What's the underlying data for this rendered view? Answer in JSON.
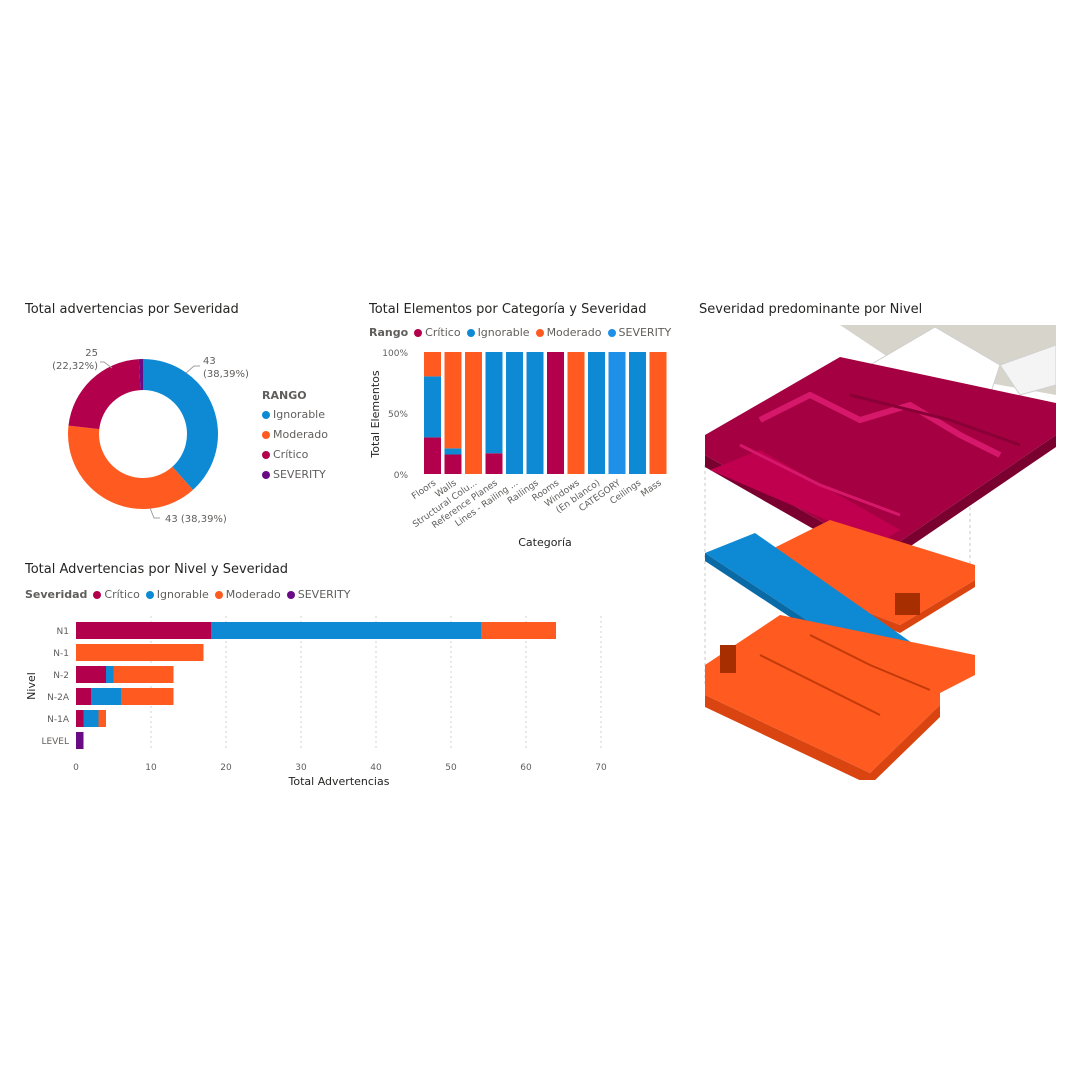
{
  "colors": {
    "Critico": "#b3004c",
    "Ignorable": "#0e8ad4",
    "Moderado": "#ff5a1f",
    "SEVERITY": "#6a0a84",
    "SEVERITY_bar": "#1e90e8"
  },
  "donut": {
    "title": "Total advertencias por Severidad",
    "legend_title": "RANGO",
    "legend": [
      "Ignorable",
      "Moderado",
      "Crítico",
      "SEVERITY"
    ],
    "labels": {
      "ignorable_value": "43",
      "ignorable_pct": "(38,39%)",
      "moderado": "43 (38,39%)",
      "critico_value": "25",
      "critico_pct": "(22,32%)"
    }
  },
  "category_chart": {
    "title": "Total Elementos por Categoría y Severidad",
    "legend_title": "Rango",
    "legend": [
      "Crítico",
      "Ignorable",
      "Moderado",
      "SEVERITY"
    ],
    "ylabel": "Total Elementos",
    "xlabel": "Categoría",
    "yticks": [
      "100%",
      "50%",
      "0%"
    ]
  },
  "level_chart": {
    "title": "Total Advertencias por Nivel y Severidad",
    "legend_title": "Severidad",
    "legend": [
      "Crítico",
      "Ignorable",
      "Moderado",
      "SEVERITY"
    ],
    "ylabel": "Nivel",
    "xlabel": "Total Advertencias"
  },
  "model_view": {
    "title": "Severidad predominante por Nivel",
    "levels": [
      "Crítico",
      "Ignorable",
      "Moderado",
      "Moderado"
    ]
  },
  "chart_data": [
    {
      "type": "pie",
      "title": "Total advertencias por Severidad",
      "legend_placement": "right",
      "categories": [
        "Ignorable",
        "Moderado",
        "Crítico",
        "SEVERITY"
      ],
      "values": [
        43,
        43,
        25,
        1
      ],
      "percent_labels": [
        "38,39%",
        "38,39%",
        "22,32%",
        ""
      ]
    },
    {
      "type": "bar",
      "stacked": "100%",
      "title": "Total Elementos por Categoría y Severidad",
      "xlabel": "Categoría",
      "ylabel": "Total Elementos",
      "legend_placement": "top",
      "categories": [
        "Floors",
        "Walls",
        "Structural Colu...",
        "Reference Planes",
        "Lines - Railing ...",
        "Railings",
        "Rooms",
        "Windows",
        "(En blanco)",
        "CATEGORY",
        "Ceilings",
        "Mass"
      ],
      "series": [
        {
          "name": "Crítico",
          "values": [
            30,
            16,
            0,
            17,
            0,
            0,
            100,
            0,
            0,
            0,
            0,
            0
          ]
        },
        {
          "name": "Ignorable",
          "values": [
            50,
            5,
            0,
            83,
            100,
            100,
            0,
            0,
            100,
            0,
            100,
            0
          ]
        },
        {
          "name": "Moderado",
          "values": [
            20,
            79,
            100,
            0,
            0,
            0,
            0,
            100,
            0,
            0,
            0,
            100
          ]
        },
        {
          "name": "SEVERITY",
          "values": [
            0,
            0,
            0,
            0,
            0,
            0,
            0,
            0,
            0,
            100,
            0,
            0
          ]
        }
      ],
      "ylim": [
        0,
        100
      ],
      "yticks": [
        "0%",
        "50%",
        "100%"
      ]
    },
    {
      "type": "bar",
      "orientation": "horizontal",
      "stacked": true,
      "title": "Total Advertencias por Nivel y Severidad",
      "xlabel": "Total Advertencias",
      "ylabel": "Nivel",
      "legend_placement": "top",
      "categories": [
        "N1",
        "N-1",
        "N-2",
        "N-2A",
        "N-1A",
        "LEVEL"
      ],
      "series": [
        {
          "name": "Crítico",
          "values": [
            18,
            0,
            4,
            2,
            1,
            0
          ]
        },
        {
          "name": "Ignorable",
          "values": [
            36,
            0,
            1,
            4,
            2,
            0
          ]
        },
        {
          "name": "Moderado",
          "values": [
            10,
            17,
            8,
            7,
            1,
            0
          ]
        },
        {
          "name": "SEVERITY",
          "values": [
            0,
            0,
            0,
            0,
            0,
            1
          ]
        }
      ],
      "xlim": [
        0,
        70
      ],
      "xticks": [
        0,
        10,
        20,
        30,
        40,
        50,
        60,
        70
      ],
      "grid": true
    }
  ]
}
